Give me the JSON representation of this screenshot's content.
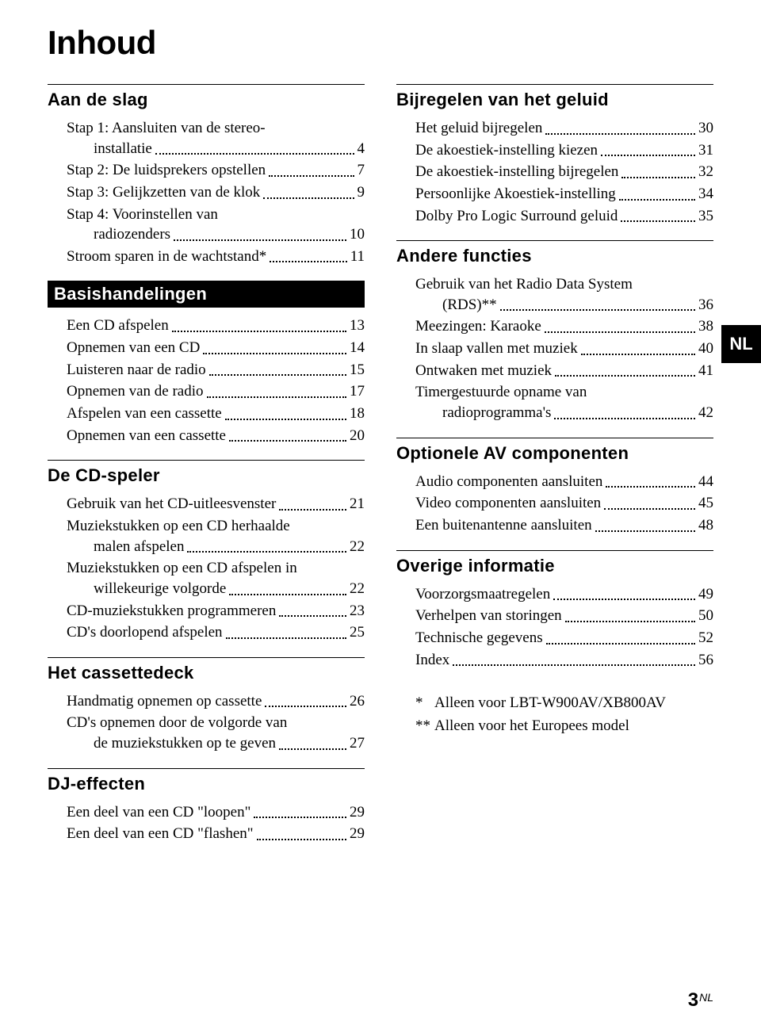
{
  "page": {
    "title": "Inhoud",
    "lang_tab": "NL",
    "page_number": "3",
    "page_suffix": "NL"
  },
  "left": [
    {
      "heading": "Aan de slag",
      "style": "first",
      "items": [
        {
          "type": "multi",
          "l1": "Stap 1: Aansluiten van de stereo-",
          "l2": "installatie",
          "pg": "4"
        },
        {
          "type": "single",
          "label": "Stap 2: De luidsprekers opstellen",
          "pg": "7"
        },
        {
          "type": "single",
          "label": "Stap 3: Gelijkzetten van de klok",
          "pg": "9"
        },
        {
          "type": "multi",
          "l1": "Stap 4: Voorinstellen van",
          "l2": "radiozenders",
          "pg": "10"
        },
        {
          "type": "single",
          "label": "Stroom sparen in de wachtstand*",
          "pg": "11"
        }
      ]
    },
    {
      "heading": "Basishandelingen",
      "style": "inverted",
      "items": [
        {
          "type": "single",
          "label": "Een CD afspelen",
          "pg": "13"
        },
        {
          "type": "single",
          "label": "Opnemen van een CD",
          "pg": "14"
        },
        {
          "type": "single",
          "label": "Luisteren naar de radio",
          "pg": "15"
        },
        {
          "type": "single",
          "label": "Opnemen van de radio",
          "pg": "17"
        },
        {
          "type": "single",
          "label": "Afspelen van een cassette",
          "pg": "18"
        },
        {
          "type": "single",
          "label": "Opnemen van een cassette",
          "pg": "20"
        }
      ]
    },
    {
      "heading": "De CD-speler",
      "style": "normal",
      "items": [
        {
          "type": "single",
          "label": "Gebruik van het CD-uitleesvenster",
          "pg": "21"
        },
        {
          "type": "multi",
          "l1": "Muziekstukken op een CD herhaalde",
          "l2": "malen afspelen",
          "pg": "22"
        },
        {
          "type": "multi",
          "l1": "Muziekstukken op een CD afspelen in",
          "l2": "willekeurige volgorde",
          "pg": "22"
        },
        {
          "type": "single",
          "label": "CD-muziekstukken programmeren",
          "pg": "23"
        },
        {
          "type": "single",
          "label": "CD's doorlopend afspelen",
          "pg": "25"
        }
      ]
    },
    {
      "heading": "Het cassettedeck",
      "style": "normal",
      "items": [
        {
          "type": "single",
          "label": "Handmatig opnemen op cassette",
          "pg": "26"
        },
        {
          "type": "multi",
          "l1": "CD's opnemen door de volgorde van",
          "l2": "de muziekstukken op te geven",
          "pg": "27"
        }
      ]
    },
    {
      "heading": "DJ-effecten",
      "style": "normal",
      "items": [
        {
          "type": "single",
          "label": "Een deel van een CD \"loopen\"",
          "pg": "29"
        },
        {
          "type": "single",
          "label": "Een deel van een CD \"flashen\"",
          "pg": "29"
        }
      ]
    }
  ],
  "right": [
    {
      "heading": "Bijregelen van het geluid",
      "style": "first",
      "items": [
        {
          "type": "single",
          "label": "Het geluid bijregelen",
          "pg": "30"
        },
        {
          "type": "single",
          "label": "De akoestiek-instelling kiezen",
          "pg": "31"
        },
        {
          "type": "single",
          "label": "De akoestiek-instelling bijregelen",
          "pg": "32"
        },
        {
          "type": "single",
          "label": "Persoonlijke Akoestiek-instelling",
          "pg": "34"
        },
        {
          "type": "single",
          "label": "Dolby Pro Logic Surround geluid",
          "pg": "35"
        }
      ]
    },
    {
      "heading": "Andere functies",
      "style": "normal",
      "items": [
        {
          "type": "multi",
          "l1": "Gebruik van het Radio Data System",
          "l2": "(RDS)**",
          "pg": "36"
        },
        {
          "type": "single",
          "label": "Meezingen: Karaoke",
          "pg": "38"
        },
        {
          "type": "single",
          "label": "In slaap vallen met muziek",
          "pg": "40"
        },
        {
          "type": "single",
          "label": "Ontwaken met muziek",
          "pg": "41"
        },
        {
          "type": "multi",
          "l1": "Timergestuurde opname van",
          "l2": "radioprogramma's",
          "pg": "42"
        }
      ]
    },
    {
      "heading": "Optionele AV componenten",
      "style": "normal",
      "items": [
        {
          "type": "single",
          "label": "Audio componenten aansluiten",
          "pg": "44"
        },
        {
          "type": "single",
          "label": "Video componenten aansluiten",
          "pg": "45"
        },
        {
          "type": "single",
          "label": "Een buitenantenne aansluiten",
          "pg": "48"
        }
      ]
    },
    {
      "heading": "Overige informatie",
      "style": "normal",
      "items": [
        {
          "type": "single",
          "label": "Voorzorgsmaatregelen",
          "pg": "49"
        },
        {
          "type": "single",
          "label": "Verhelpen van storingen",
          "pg": "50"
        },
        {
          "type": "single",
          "label": "Technische gegevens",
          "pg": "52"
        },
        {
          "type": "single",
          "label": "Index",
          "pg": "56"
        }
      ]
    }
  ],
  "footnotes": [
    {
      "mark": "*",
      "text": "Alleen voor LBT-W900AV/XB800AV"
    },
    {
      "mark": "**",
      "text": "Alleen voor het Europees model"
    }
  ]
}
